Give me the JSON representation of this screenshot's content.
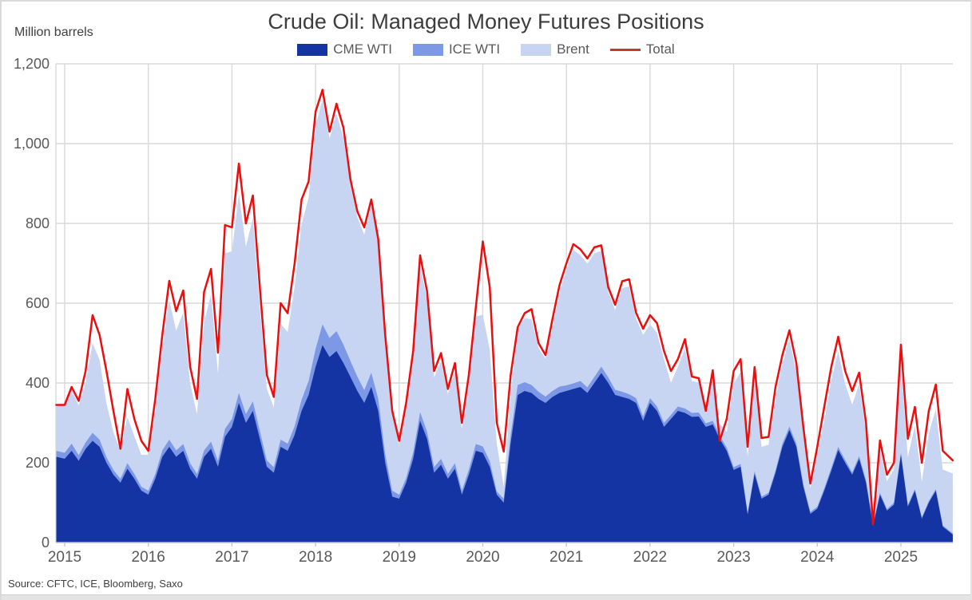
{
  "chart_data": {
    "type": "area",
    "stacked": true,
    "title": "Crude Oil: Managed Money Futures Positions",
    "unit_label": "Million barrels",
    "source": "Source: CFTC, ICE,  Bloomberg, Saxo",
    "grid": true,
    "legend_position": "top-center",
    "colors": {
      "grid": "#d9d9d9",
      "axis": "#c6c6c6",
      "tick_text": "#595959",
      "title_text": "#3d3d3d",
      "legend_total_swatch": "#c23b32"
    },
    "y_axis": {
      "range": [
        0,
        1200
      ],
      "ticks": [
        {
          "v": 0,
          "label": "0"
        },
        {
          "v": 200,
          "label": "200"
        },
        {
          "v": 400,
          "label": "400"
        },
        {
          "v": 600,
          "label": "600"
        },
        {
          "v": 800,
          "label": "800"
        },
        {
          "v": 1000,
          "label": "1,000"
        },
        {
          "v": 1200,
          "label": "1,200"
        }
      ]
    },
    "x_axis": {
      "range": [
        2014.9,
        2025.62
      ],
      "ticks": [
        {
          "v": 2015,
          "label": "2015"
        },
        {
          "v": 2016,
          "label": "2016"
        },
        {
          "v": 2017,
          "label": "2017"
        },
        {
          "v": 2018,
          "label": "2018"
        },
        {
          "v": 2019,
          "label": "2019"
        },
        {
          "v": 2020,
          "label": "2020"
        },
        {
          "v": 2021,
          "label": "2021"
        },
        {
          "v": 2022,
          "label": "2022"
        },
        {
          "v": 2023,
          "label": "2023"
        },
        {
          "v": 2024,
          "label": "2024"
        },
        {
          "v": 2025,
          "label": "2025"
        }
      ]
    },
    "x": [
      2014.9,
      2015,
      2015.083,
      2015.167,
      2015.25,
      2015.333,
      2015.417,
      2015.5,
      2015.583,
      2015.667,
      2015.75,
      2015.833,
      2015.917,
      2016,
      2016.083,
      2016.167,
      2016.25,
      2016.333,
      2016.417,
      2016.5,
      2016.583,
      2016.667,
      2016.75,
      2016.833,
      2016.917,
      2017,
      2017.083,
      2017.167,
      2017.25,
      2017.333,
      2017.417,
      2017.5,
      2017.583,
      2017.667,
      2017.75,
      2017.833,
      2017.917,
      2018,
      2018.083,
      2018.167,
      2018.25,
      2018.333,
      2018.417,
      2018.5,
      2018.583,
      2018.667,
      2018.75,
      2018.833,
      2018.917,
      2019,
      2019.083,
      2019.167,
      2019.25,
      2019.333,
      2019.417,
      2019.5,
      2019.583,
      2019.667,
      2019.75,
      2019.833,
      2019.917,
      2020,
      2020.083,
      2020.167,
      2020.25,
      2020.333,
      2020.417,
      2020.5,
      2020.583,
      2020.667,
      2020.75,
      2020.833,
      2020.917,
      2021,
      2021.083,
      2021.167,
      2021.25,
      2021.333,
      2021.417,
      2021.5,
      2021.583,
      2021.667,
      2021.75,
      2021.833,
      2021.917,
      2022,
      2022.083,
      2022.167,
      2022.25,
      2022.333,
      2022.417,
      2022.5,
      2022.583,
      2022.667,
      2022.75,
      2022.833,
      2022.917,
      2023,
      2023.083,
      2023.167,
      2023.25,
      2023.333,
      2023.417,
      2023.5,
      2023.583,
      2023.667,
      2023.75,
      2023.833,
      2023.917,
      2024,
      2024.083,
      2024.167,
      2024.25,
      2024.333,
      2024.417,
      2024.5,
      2024.583,
      2024.667,
      2024.75,
      2024.833,
      2024.917,
      2025,
      2025.083,
      2025.167,
      2025.25,
      2025.333,
      2025.417,
      2025.5,
      2025.62
    ],
    "series": [
      {
        "name": "CME WTI",
        "kind": "area",
        "color": "#1434a4",
        "values": [
          215,
          210,
          230,
          205,
          235,
          255,
          240,
          200,
          170,
          150,
          185,
          160,
          130,
          120,
          160,
          215,
          240,
          215,
          230,
          185,
          160,
          215,
          235,
          190,
          265,
          290,
          350,
          300,
          330,
          260,
          190,
          175,
          240,
          230,
          270,
          330,
          370,
          440,
          495,
          465,
          480,
          450,
          415,
          380,
          350,
          390,
          330,
          200,
          115,
          110,
          150,
          210,
          305,
          260,
          175,
          195,
          160,
          185,
          120,
          170,
          230,
          225,
          190,
          120,
          100,
          250,
          370,
          380,
          375,
          360,
          350,
          365,
          375,
          380,
          385,
          390,
          375,
          400,
          425,
          400,
          370,
          365,
          360,
          350,
          305,
          350,
          330,
          290,
          310,
          330,
          325,
          315,
          316,
          290,
          296,
          260,
          230,
          182,
          190,
          70,
          172,
          110,
          120,
          175,
          240,
          282,
          240,
          140,
          72,
          85,
          130,
          180,
          232,
          200,
          170,
          210,
          150,
          42,
          120,
          80,
          95,
          220,
          90,
          130,
          60,
          100,
          130,
          40,
          20
        ]
      },
      {
        "name": "ICE WTI",
        "kind": "area",
        "color": "#7d99e6",
        "values": [
          15,
          15,
          18,
          14,
          16,
          20,
          18,
          14,
          12,
          10,
          14,
          12,
          10,
          10,
          12,
          16,
          18,
          16,
          17,
          14,
          12,
          16,
          18,
          15,
          20,
          20,
          25,
          22,
          24,
          20,
          16,
          14,
          18,
          18,
          22,
          28,
          35,
          45,
          52,
          48,
          50,
          46,
          40,
          36,
          32,
          36,
          30,
          22,
          15,
          10,
          12,
          16,
          22,
          18,
          14,
          15,
          12,
          14,
          10,
          13,
          17,
          16,
          14,
          8,
          10,
          20,
          25,
          22,
          20,
          18,
          16,
          15,
          16,
          14,
          14,
          15,
          14,
          15,
          16,
          14,
          13,
          13,
          12,
          12,
          11,
          12,
          11,
          10,
          10,
          11,
          11,
          10,
          10,
          9,
          9,
          8,
          8,
          7,
          7,
          5,
          7,
          5,
          5,
          6,
          8,
          9,
          8,
          6,
          5,
          5,
          6,
          7,
          8,
          7,
          6,
          7,
          6,
          3,
          5,
          4,
          5,
          5,
          4,
          4,
          3,
          4,
          4,
          3,
          3
        ]
      },
      {
        "name": "Brent",
        "kind": "area",
        "color": "#c7d5f3",
        "values": [
          115,
          120,
          135,
          125,
          150,
          225,
          200,
          135,
          95,
          70,
          115,
          95,
          80,
          90,
          160,
          260,
          350,
          300,
          330,
          200,
          150,
          320,
          370,
          220,
          440,
          420,
          500,
          420,
          460,
          310,
          180,
          150,
          290,
          280,
          350,
          440,
          460,
          560,
          565,
          500,
          545,
          520,
          440,
          400,
          390,
          420,
          390,
          290,
          195,
          120,
          175,
          240,
          370,
          330,
          225,
          245,
          200,
          230,
          155,
          215,
          320,
          330,
          280,
          120,
          30,
          100,
          140,
          160,
          165,
          110,
          95,
          160,
          235,
          290,
          335,
          315,
          310,
          310,
          290,
          215,
          200,
          260,
          270,
          200,
          205,
          185,
          185,
          160,
          80,
          100,
          150,
          80,
          75,
          25,
          110,
          30,
          40,
          210,
          230,
          140,
          230,
          125,
          120,
          180,
          200,
          220,
          180,
          130,
          60,
          130,
          170,
          220,
          240,
          190,
          170,
          180,
          120,
          8,
          110,
          70,
          85,
          220,
          120,
          160,
          90,
          170,
          200,
          140,
          150
        ]
      },
      {
        "name": "Total",
        "kind": "line",
        "color": "#ec0d0d",
        "values": [
          345,
          345,
          390,
          355,
          430,
          570,
          520,
          430,
          330,
          235,
          385,
          310,
          255,
          230,
          360,
          520,
          656,
          580,
          632,
          440,
          360,
          628,
          686,
          476,
          796,
          790,
          950,
          800,
          870,
          640,
          420,
          365,
          600,
          575,
          700,
          860,
          905,
          1080,
          1135,
          1030,
          1100,
          1040,
          910,
          830,
          790,
          860,
          760,
          520,
          330,
          255,
          350,
          480,
          720,
          630,
          430,
          475,
          385,
          450,
          300,
          420,
          590,
          755,
          640,
          300,
          228,
          420,
          540,
          575,
          585,
          500,
          470,
          560,
          645,
          700,
          748,
          735,
          712,
          740,
          745,
          640,
          596,
          655,
          660,
          576,
          536,
          570,
          550,
          480,
          430,
          460,
          510,
          416,
          412,
          330,
          432,
          255,
          310,
          430,
          460,
          240,
          440,
          262,
          265,
          390,
          470,
          532,
          450,
          290,
          148,
          240,
          340,
          440,
          516,
          430,
          380,
          426,
          300,
          46,
          256,
          170,
          200,
          496,
          260,
          340,
          200,
          330,
          396,
          230,
          206
        ]
      }
    ]
  }
}
